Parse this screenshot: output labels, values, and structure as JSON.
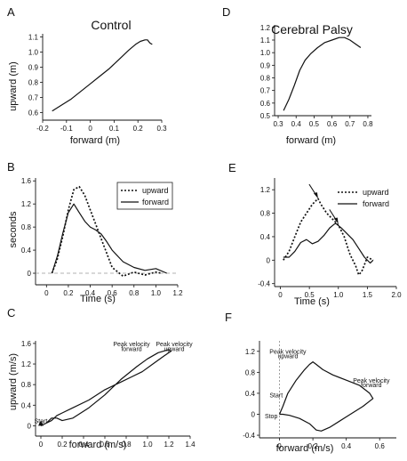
{
  "chart_data": [
    {
      "panel": "A",
      "type": "line",
      "title": "Control",
      "xlabel": "forward (m)",
      "ylabel": "upward (m)",
      "xlim": [
        -0.2,
        0.3
      ],
      "ylim": [
        0.55,
        1.12
      ],
      "xticks": [
        -0.2,
        -0.1,
        0,
        0.1,
        0.2,
        0.3
      ],
      "xticklabels": [
        "-0.2",
        "-0.1",
        "0",
        "0.1",
        "0.2",
        "0.3"
      ],
      "yticks": [
        0.6,
        0.7,
        0.8,
        0.9,
        1.0,
        1.1
      ],
      "yticklabels": [
        "0.6",
        "0.7",
        "0.8",
        "0.9",
        "1.0",
        "1.1"
      ],
      "series": [
        {
          "style": "solid",
          "x": [
            -0.16,
            -0.12,
            -0.08,
            -0.04,
            0.0,
            0.04,
            0.08,
            0.12,
            0.16,
            0.19,
            0.21,
            0.23,
            0.24,
            0.25,
            0.26
          ],
          "y": [
            0.61,
            0.65,
            0.69,
            0.74,
            0.79,
            0.84,
            0.89,
            0.95,
            1.01,
            1.05,
            1.07,
            1.08,
            1.08,
            1.06,
            1.05
          ]
        }
      ]
    },
    {
      "panel": "D",
      "type": "line",
      "title": "Cerebral Palsy",
      "xlabel": "forward (m)",
      "ylabel": "",
      "xlim": [
        0.28,
        0.82
      ],
      "ylim": [
        0.5,
        1.22
      ],
      "xticks": [
        0.3,
        0.4,
        0.5,
        0.6,
        0.7,
        0.8
      ],
      "xticklabels": [
        "0.3",
        "0.4",
        "0.5",
        "0.6",
        "0.7",
        "0.8"
      ],
      "yticks": [
        0.5,
        0.6,
        0.7,
        0.8,
        0.9,
        1.0,
        1.1,
        1.2
      ],
      "yticklabels": [
        "0.5",
        "0.6",
        "0.7",
        "0.8",
        "0.9",
        "1.0",
        "1.1",
        "1.2"
      ],
      "series": [
        {
          "style": "solid",
          "x": [
            0.33,
            0.36,
            0.39,
            0.42,
            0.45,
            0.48,
            0.52,
            0.56,
            0.6,
            0.64,
            0.67,
            0.7,
            0.73,
            0.76
          ],
          "y": [
            0.54,
            0.63,
            0.74,
            0.86,
            0.94,
            0.99,
            1.04,
            1.08,
            1.1,
            1.12,
            1.12,
            1.1,
            1.07,
            1.04
          ]
        }
      ]
    },
    {
      "panel": "B",
      "type": "line",
      "title": "",
      "xlabel": "Time (s)",
      "ylabel": "seconds",
      "xlim": [
        -0.1,
        1.2
      ],
      "ylim": [
        -0.2,
        1.65
      ],
      "xticks": [
        0,
        0.2,
        0.4,
        0.6,
        0.8,
        1.0,
        1.2
      ],
      "xticklabels": [
        "0",
        "0.2",
        "0.4",
        "0.6",
        "0.8",
        "1.0",
        "1.2"
      ],
      "yticks": [
        0,
        0.4,
        0.8,
        1.2,
        1.6
      ],
      "yticklabels": [
        "0",
        "0.4",
        "0.8",
        "1.2",
        "1.6"
      ],
      "legend": "top-right",
      "series": [
        {
          "name": "upward",
          "style": "dotted",
          "x": [
            0.05,
            0.1,
            0.15,
            0.2,
            0.25,
            0.3,
            0.35,
            0.4,
            0.45,
            0.5,
            0.55,
            0.6,
            0.7,
            0.8,
            0.9,
            1.0,
            1.05
          ],
          "y": [
            0.0,
            0.25,
            0.65,
            1.1,
            1.45,
            1.5,
            1.35,
            1.1,
            0.85,
            0.6,
            0.35,
            0.1,
            -0.05,
            0.02,
            -0.03,
            0.02,
            0.0
          ]
        },
        {
          "name": "forward",
          "style": "solid",
          "x": [
            0.05,
            0.1,
            0.15,
            0.2,
            0.25,
            0.3,
            0.35,
            0.4,
            0.45,
            0.5,
            0.55,
            0.6,
            0.7,
            0.8,
            0.9,
            1.0,
            1.1
          ],
          "y": [
            0.0,
            0.3,
            0.7,
            1.05,
            1.2,
            1.05,
            0.9,
            0.8,
            0.75,
            0.68,
            0.55,
            0.4,
            0.2,
            0.1,
            0.05,
            0.08,
            0.0
          ]
        }
      ]
    },
    {
      "panel": "E",
      "type": "line",
      "title": "",
      "xlabel": "Time (s)",
      "ylabel": "",
      "xlim": [
        -0.1,
        2.0
      ],
      "ylim": [
        -0.45,
        1.4
      ],
      "xticks": [
        0,
        0.5,
        1.0,
        1.5,
        2.0
      ],
      "xticklabels": [
        "0",
        "0.5",
        "1.0",
        "1.5",
        "2.0"
      ],
      "yticks": [
        -0.4,
        0,
        0.4,
        0.8,
        1.2
      ],
      "yticklabels": [
        "-0.4",
        "0",
        "0.4",
        "0.8",
        "1.2"
      ],
      "legend": "top-right",
      "series": [
        {
          "name": "upward",
          "style": "dotted",
          "x": [
            0.05,
            0.15,
            0.25,
            0.35,
            0.45,
            0.55,
            0.65,
            0.7,
            0.8,
            0.9,
            1.0,
            1.1,
            1.2,
            1.3,
            1.35,
            1.4,
            1.5,
            1.6
          ],
          "y": [
            0.0,
            0.15,
            0.4,
            0.65,
            0.8,
            0.95,
            1.05,
            0.95,
            0.8,
            0.7,
            0.6,
            0.4,
            0.1,
            -0.1,
            -0.25,
            -0.2,
            0.05,
            0.0
          ]
        },
        {
          "name": "forward",
          "style": "solid",
          "x": [
            0.05,
            0.15,
            0.25,
            0.35,
            0.45,
            0.55,
            0.65,
            0.75,
            0.85,
            0.95,
            1.05,
            1.15,
            1.25,
            1.35,
            1.45,
            1.55,
            1.6
          ],
          "y": [
            0.05,
            0.05,
            0.15,
            0.3,
            0.35,
            0.28,
            0.32,
            0.42,
            0.55,
            0.63,
            0.55,
            0.45,
            0.35,
            0.2,
            0.05,
            -0.05,
            0.0
          ]
        }
      ],
      "annotations": [
        {
          "kind": "arrow",
          "target_x": 0.65,
          "target_y": 1.05
        },
        {
          "kind": "arrow",
          "target_x": 1.0,
          "target_y": 0.62
        }
      ]
    },
    {
      "panel": "C",
      "type": "line",
      "title": "",
      "xlabel": "forward (m/s)",
      "ylabel": "upward (m/s)",
      "xlim": [
        -0.05,
        1.4
      ],
      "ylim": [
        -0.2,
        1.65
      ],
      "xticks": [
        0,
        0.2,
        0.4,
        0.6,
        0.8,
        1.0,
        1.2,
        1.4
      ],
      "xticklabels": [
        "0",
        "0.2",
        "0.4",
        "0.6",
        "0.8",
        "1.0",
        "1.2",
        "1.4"
      ],
      "yticks": [
        0,
        0.4,
        0.8,
        1.2,
        1.6
      ],
      "yticklabels": [
        "0",
        "0.4",
        "0.8",
        "1.2",
        "1.6"
      ],
      "series": [
        {
          "style": "solid",
          "x": [
            0.0,
            0.05,
            0.1,
            0.15,
            0.2,
            0.3,
            0.45,
            0.6,
            0.75,
            0.9,
            1.0,
            1.1,
            1.2,
            1.22,
            1.15,
            1.05,
            0.95,
            0.85,
            0.75,
            0.6,
            0.45,
            0.3,
            0.2,
            0.15,
            0.1,
            0.05,
            0.0
          ],
          "y": [
            0.0,
            0.05,
            0.15,
            0.15,
            0.1,
            0.15,
            0.35,
            0.6,
            0.9,
            1.15,
            1.3,
            1.42,
            1.48,
            1.45,
            1.35,
            1.2,
            1.05,
            0.95,
            0.85,
            0.7,
            0.5,
            0.35,
            0.25,
            0.2,
            0.1,
            0.05,
            0.0
          ]
        }
      ],
      "annotations": [
        {
          "kind": "label",
          "text": "Start",
          "x": 0.0,
          "y": 0.05
        },
        {
          "kind": "label",
          "text": "Peak velocity",
          "x": 0.85,
          "y": 1.55
        },
        {
          "kind": "label",
          "text": "forward",
          "x": 0.85,
          "y": 1.45
        },
        {
          "kind": "label",
          "text": "Peak velocity",
          "x": 1.25,
          "y": 1.55
        },
        {
          "kind": "label",
          "text": "upward",
          "x": 1.25,
          "y": 1.45
        }
      ]
    },
    {
      "panel": "F",
      "type": "line",
      "title": "",
      "xlabel": "forward (m/s)",
      "ylabel": "",
      "xlim": [
        -0.12,
        0.7
      ],
      "ylim": [
        -0.45,
        1.4
      ],
      "xticks": [
        0,
        0.2,
        0.4,
        0.6
      ],
      "xticklabels": [
        "0",
        "0.2",
        "0.4",
        "0.6"
      ],
      "yticks": [
        -0.4,
        0,
        0.4,
        0.8,
        1.2
      ],
      "yticklabels": [
        "-0.4",
        "0",
        "0.4",
        "0.8",
        "1.2"
      ],
      "series": [
        {
          "style": "solid",
          "x": [
            0.0,
            0.02,
            0.05,
            0.1,
            0.15,
            0.18,
            0.2,
            0.22,
            0.26,
            0.32,
            0.4,
            0.48,
            0.54,
            0.56,
            0.5,
            0.4,
            0.3,
            0.25,
            0.22,
            0.18,
            0.12,
            0.06,
            0.02,
            0.0
          ],
          "y": [
            0.0,
            0.15,
            0.4,
            0.65,
            0.85,
            0.95,
            1.0,
            0.95,
            0.85,
            0.75,
            0.65,
            0.55,
            0.4,
            0.3,
            0.15,
            -0.05,
            -0.25,
            -0.32,
            -0.3,
            -0.18,
            -0.08,
            -0.02,
            0.0,
            0.0
          ]
        }
      ],
      "annotations": [
        {
          "kind": "label",
          "text": "Peak velocity",
          "x": 0.05,
          "y": 1.15
        },
        {
          "kind": "label",
          "text": "upward",
          "x": 0.05,
          "y": 1.07
        },
        {
          "kind": "label",
          "text": "Peak velocity",
          "x": 0.55,
          "y": 0.6
        },
        {
          "kind": "label",
          "text": "forward",
          "x": 0.55,
          "y": 0.52
        },
        {
          "kind": "label",
          "text": "Start",
          "x": -0.02,
          "y": 0.32
        },
        {
          "kind": "label",
          "text": "Stop",
          "x": -0.05,
          "y": -0.08
        }
      ]
    }
  ]
}
